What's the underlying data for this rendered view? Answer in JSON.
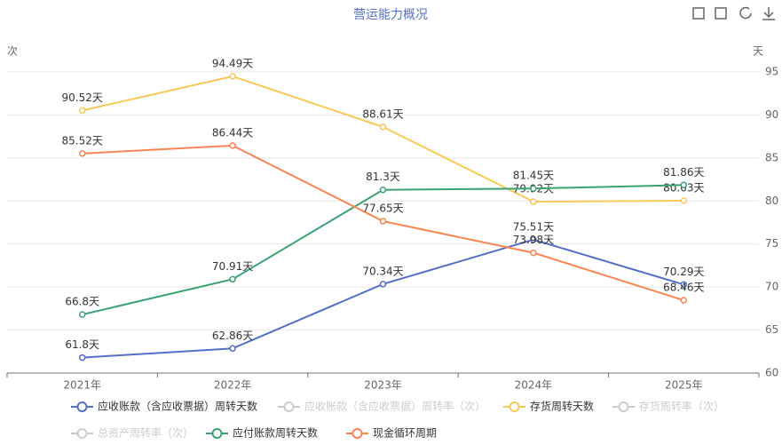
{
  "chart_data": {
    "type": "line",
    "title": "营运能力概况",
    "y_label": "次",
    "y2_label": "天",
    "categories": [
      "2021年",
      "2022年",
      "2023年",
      "2024年",
      "2025年"
    ],
    "y2lim": [
      60,
      95
    ],
    "y2ticks": [
      60,
      65,
      70,
      75,
      80,
      85,
      90,
      95
    ],
    "grid": true,
    "series": [
      {
        "name": "应收账款（含应收票据）周转天数",
        "color": "#5470c6",
        "axis": "y2",
        "values": [
          61.8,
          62.86,
          70.34,
          75.51,
          70.29
        ],
        "value_labels": [
          "61.8天",
          "62.86天",
          "70.34天",
          "75.51天",
          "70.29天"
        ]
      },
      {
        "name": "应收账款（含应收票据）周转率（次）",
        "color": "#cccccc",
        "hidden": true
      },
      {
        "name": "存货周转天数",
        "color": "#fac858",
        "axis": "y2",
        "values": [
          90.52,
          94.49,
          88.61,
          79.92,
          80.03
        ],
        "value_labels": [
          "90.52天",
          "94.49天",
          "88.61天",
          "79.92天",
          "80.03天"
        ]
      },
      {
        "name": "存货周转率（次）",
        "color": "#cccccc",
        "hidden": true
      },
      {
        "name": "总资产周转率（次）",
        "color": "#cccccc",
        "hidden": true
      },
      {
        "name": "应付账款周转天数",
        "color": "#3ba272",
        "axis": "y2",
        "values": [
          66.8,
          70.91,
          81.3,
          81.45,
          81.86
        ],
        "value_labels": [
          "66.8天",
          "70.91天",
          "81.3天",
          "81.45天",
          "81.86天"
        ]
      },
      {
        "name": "现金循环周期",
        "color": "#fc8452",
        "axis": "y2",
        "values": [
          85.52,
          86.44,
          77.65,
          73.98,
          68.46
        ],
        "value_labels": [
          "85.52天",
          "86.44天",
          "77.65天",
          "73.98天",
          "68.46天"
        ]
      }
    ]
  }
}
